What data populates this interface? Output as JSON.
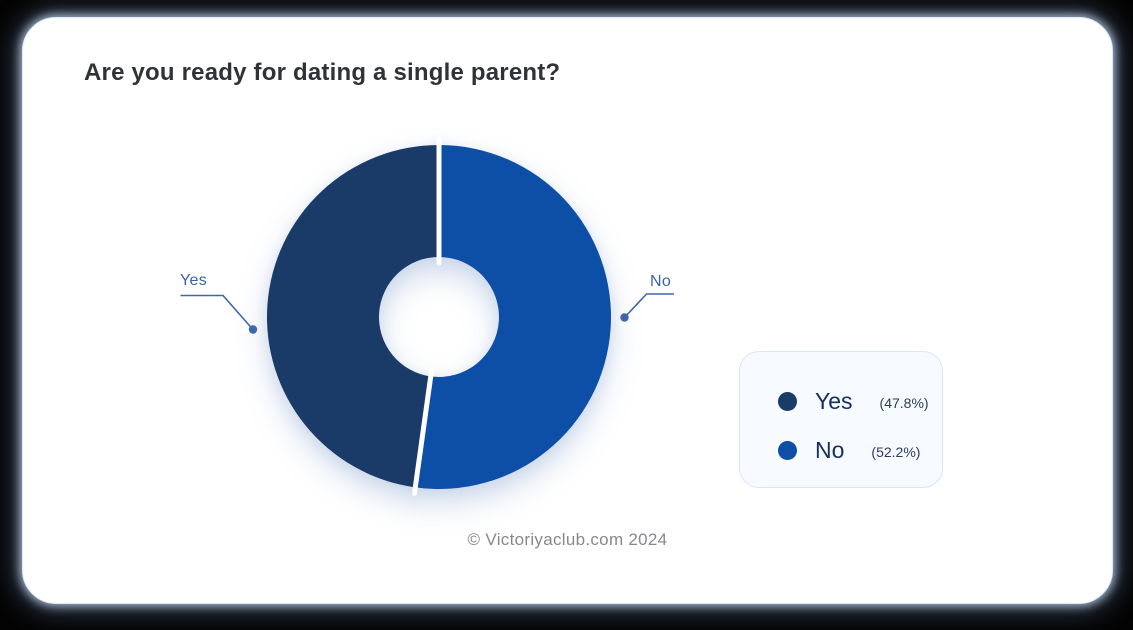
{
  "page": {
    "background_color": "#030303",
    "card_background": "#ffffff",
    "card_glow_color": "#cfe0f5"
  },
  "header": {
    "title": "Are you ready for dating a single parent?"
  },
  "chart_data": {
    "type": "pie",
    "subtype": "donut",
    "title": "Are you ready for dating a single parent?",
    "categories": [
      "Yes",
      "No"
    ],
    "values": [
      47.8,
      52.2
    ],
    "unit": "percent",
    "slices": [
      {
        "label": "No",
        "value": 52.2,
        "color": "#0d4fa6"
      },
      {
        "label": "Yes",
        "value": 47.8,
        "color": "#1a3a68"
      }
    ],
    "draw": {
      "start_angle_deg": 0,
      "direction": "clockwise",
      "inner_radius_ratio": 0.35,
      "slice_gap_color": "#ffffff"
    },
    "legend_position": "right",
    "callouts": {
      "left": "Yes",
      "right": "No"
    },
    "callout_line_color": "#3f66aa"
  },
  "legend": {
    "items": [
      {
        "label": "Yes",
        "value": "(47.8%)",
        "color": "#1a3a68"
      },
      {
        "label": "No",
        "value": "(52.2%)",
        "color": "#0d4fa6"
      }
    ]
  },
  "footer": {
    "copyright": "© Victoriyaclub.com 2024"
  }
}
